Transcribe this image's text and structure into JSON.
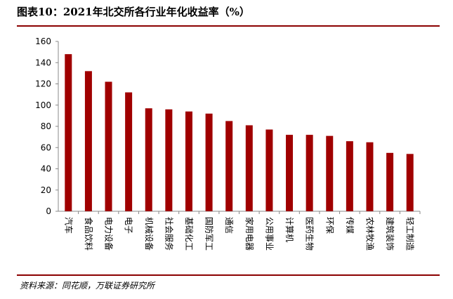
{
  "header": {
    "title": "图表10：2021年北交所各行业年化收益率（%）"
  },
  "footer": {
    "source": "资料来源：同花顺，万联证券研究所"
  },
  "colors": {
    "bar": "#a00000",
    "rule": "#8b0000",
    "axis": "#888888"
  },
  "chart_data": {
    "type": "bar",
    "categories": [
      "汽车",
      "食品饮料",
      "电力设备",
      "电子",
      "机械设备",
      "社会服务",
      "基础化工",
      "国防军工",
      "通信",
      "家用电器",
      "公用事业",
      "计算机",
      "医药生物",
      "环保",
      "传媒",
      "农林牧渔",
      "建筑装饰",
      "轻工制造"
    ],
    "values": [
      148,
      132,
      122,
      112,
      97,
      96,
      94,
      92,
      85,
      81,
      77,
      72,
      72,
      71,
      66,
      65,
      55,
      54
    ],
    "ylim": [
      0,
      160
    ],
    "yticks": [
      0,
      20,
      40,
      60,
      80,
      100,
      120,
      140,
      160
    ],
    "grid": false,
    "legend": false
  }
}
